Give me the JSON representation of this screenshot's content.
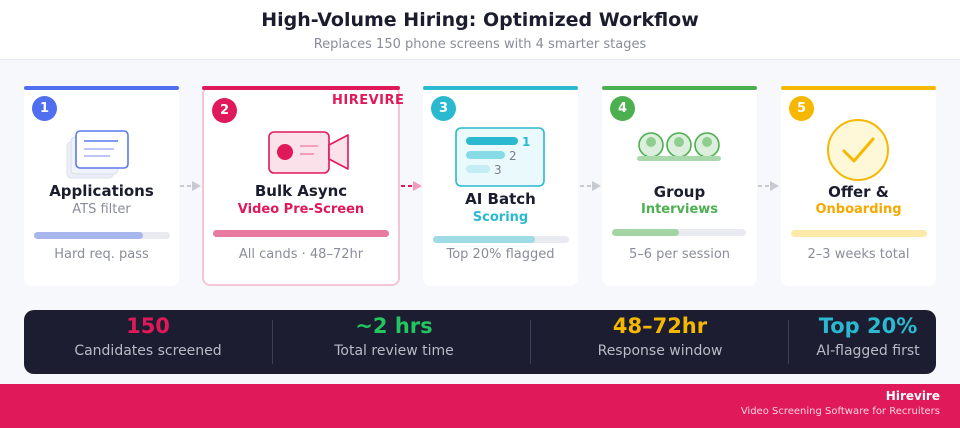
{
  "header": {
    "title": "High-Volume Hiring: Optimized Workflow",
    "subtitle": "Replaces 150 phone screens with 4 smarter stages"
  },
  "brand_tag": "HIREVIRE",
  "colors": {
    "stage1": "#4f6ef0",
    "stage2": "#e0195a",
    "stage3": "#2bb9d0",
    "stage4": "#4caf50",
    "stage5": "#f5b700",
    "brand": "#e0195a",
    "stats_bg": "#1c1d31"
  },
  "stages": [
    {
      "number": "1",
      "title": "Applications",
      "subtitle": "ATS filter",
      "footer": "Hard req. pass",
      "icon": "documents-icon",
      "progress": 0.8
    },
    {
      "number": "2",
      "title": "Bulk Async",
      "subtitle": "Video Pre-Screen",
      "footer": "All cands · 48–72hr",
      "icon": "video-camera-icon",
      "progress": 1.0
    },
    {
      "number": "3",
      "title": "AI Batch",
      "subtitle": "Scoring",
      "footer": "Top 20% flagged",
      "icon": "ranking-icon",
      "ranks": [
        "1",
        "2",
        "3"
      ],
      "progress": 0.75
    },
    {
      "number": "4",
      "title": "Group",
      "subtitle": "Interviews",
      "footer": "5–6 per session",
      "icon": "group-icon",
      "progress": 0.5
    },
    {
      "number": "5",
      "title": "Offer &",
      "subtitle": "Onboarding",
      "footer": "2–3 weeks total",
      "icon": "checkmark-icon",
      "progress": 1.0
    }
  ],
  "stats": [
    {
      "value": "150",
      "label": "Candidates screened",
      "color": "#e0195a"
    },
    {
      "value": "~2 hrs",
      "label": "Total review time",
      "color": "#22c55e"
    },
    {
      "value": "48–72hr",
      "label": "Response window",
      "color": "#f5b700"
    },
    {
      "value": "Top 20%",
      "label": "AI-flagged first",
      "color": "#2bb9d0"
    }
  ],
  "footer": {
    "name": "Hirevire",
    "tagline": "Video Screening Software for Recruiters"
  }
}
